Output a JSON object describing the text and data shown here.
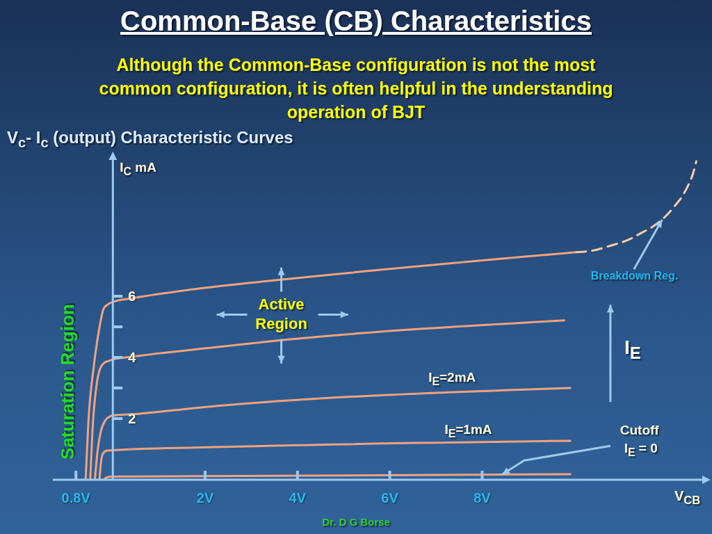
{
  "chart_data": {
    "type": "line",
    "title": "Common-Base (CB) Characteristics",
    "subtitle": "Although the Common-Base configuration is not the most common configuration, it is often helpful in the understanding operation of BJT",
    "xlabel": "V$_{CB}$",
    "ylabel": "I$_{C}$ mA",
    "annotations": [
      "V$_{c}$- I$_{c}$ (output) Characteristic Curves",
      "Active Region",
      "Saturation Region",
      {
        "text": "Breakdown Reg.",
        "x": 11.9,
        "y": 8.5
      },
      "I$_{E}$",
      {
        "text": "Cutoff",
        "x": 8.43,
        "y": 0.17
      },
      "Dr. D G Borse"
    ],
    "xlim": [
      -1.3,
      12.8
    ],
    "ylim": [
      0,
      10.5
    ],
    "xticks": [
      {
        "value": -0.8,
        "label": "0.8V"
      },
      {
        "value": 2,
        "label": "2V"
      },
      {
        "value": 4,
        "label": "4V"
      },
      {
        "value": 6,
        "label": "6V"
      },
      {
        "value": 8,
        "label": "8V"
      }
    ],
    "yticks": [
      2,
      {
        "value": 3,
        "label": null
      },
      4,
      {
        "value": 5,
        "label": null
      },
      6
    ],
    "series": [
      {
        "color": "#f4a27e",
        "x": [
          -0.59,
          -0.53,
          -0.41,
          -0.29,
          -0.2,
          -0.12,
          0,
          0.41,
          2.03,
          3.64,
          10.04
        ],
        "values": [
          0,
          1.89,
          3.74,
          4.98,
          5.59,
          5.72,
          5.81,
          5.93,
          6.28,
          6.54,
          7.44
        ]
      },
      {
        "color": "#f8cba6",
        "line_style": "dashed",
        "x": [
          10.04,
          10.39,
          10.8,
          11.15,
          11.44,
          11.76,
          11.98,
          12.18,
          12.35,
          12.47,
          12.57,
          12.64
        ],
        "values": [
          7.44,
          7.49,
          7.66,
          7.83,
          8.06,
          8.34,
          8.62,
          8.96,
          9.3,
          9.64,
          10.01,
          10.41
        ]
      },
      {
        "color": "#f4a27e",
        "x": [
          -0.49,
          -0.43,
          -0.35,
          -0.28,
          -0.18,
          -0.08,
          0,
          0.41,
          2.03,
          3.64,
          9.78
        ],
        "values": [
          0,
          1.89,
          3.12,
          3.62,
          3.83,
          3.89,
          3.93,
          4.02,
          4.3,
          4.56,
          5.21
        ]
      },
      {
        "name": "I$_{E}$=2mA",
        "color": "#f4a27e",
        "x": [
          -0.39,
          -0.33,
          -0.26,
          -0.16,
          -0.06,
          0,
          0.41,
          2.03,
          9.91
        ],
        "values": [
          0,
          0.96,
          1.58,
          1.95,
          2.07,
          2.1,
          2.14,
          2.38,
          3.0
        ]
      },
      {
        "name": "I$_{E}$=1mA",
        "color": "#f4a27e",
        "x": [
          -0.29,
          -0.26,
          -0.22,
          -0.14,
          -0.06,
          2.03,
          9.91
        ],
        "values": [
          0,
          0.53,
          0.84,
          0.95,
          0.96,
          1.06,
          1.27
        ]
      },
      {
        "name": "I$_{E}$ = 0",
        "color": "#f4a27e",
        "x": [
          -0.2,
          -0.14,
          -0.06,
          2.03,
          9.91
        ],
        "values": [
          0,
          0.07,
          0.1,
          0.12,
          0.18
        ]
      }
    ]
  }
}
